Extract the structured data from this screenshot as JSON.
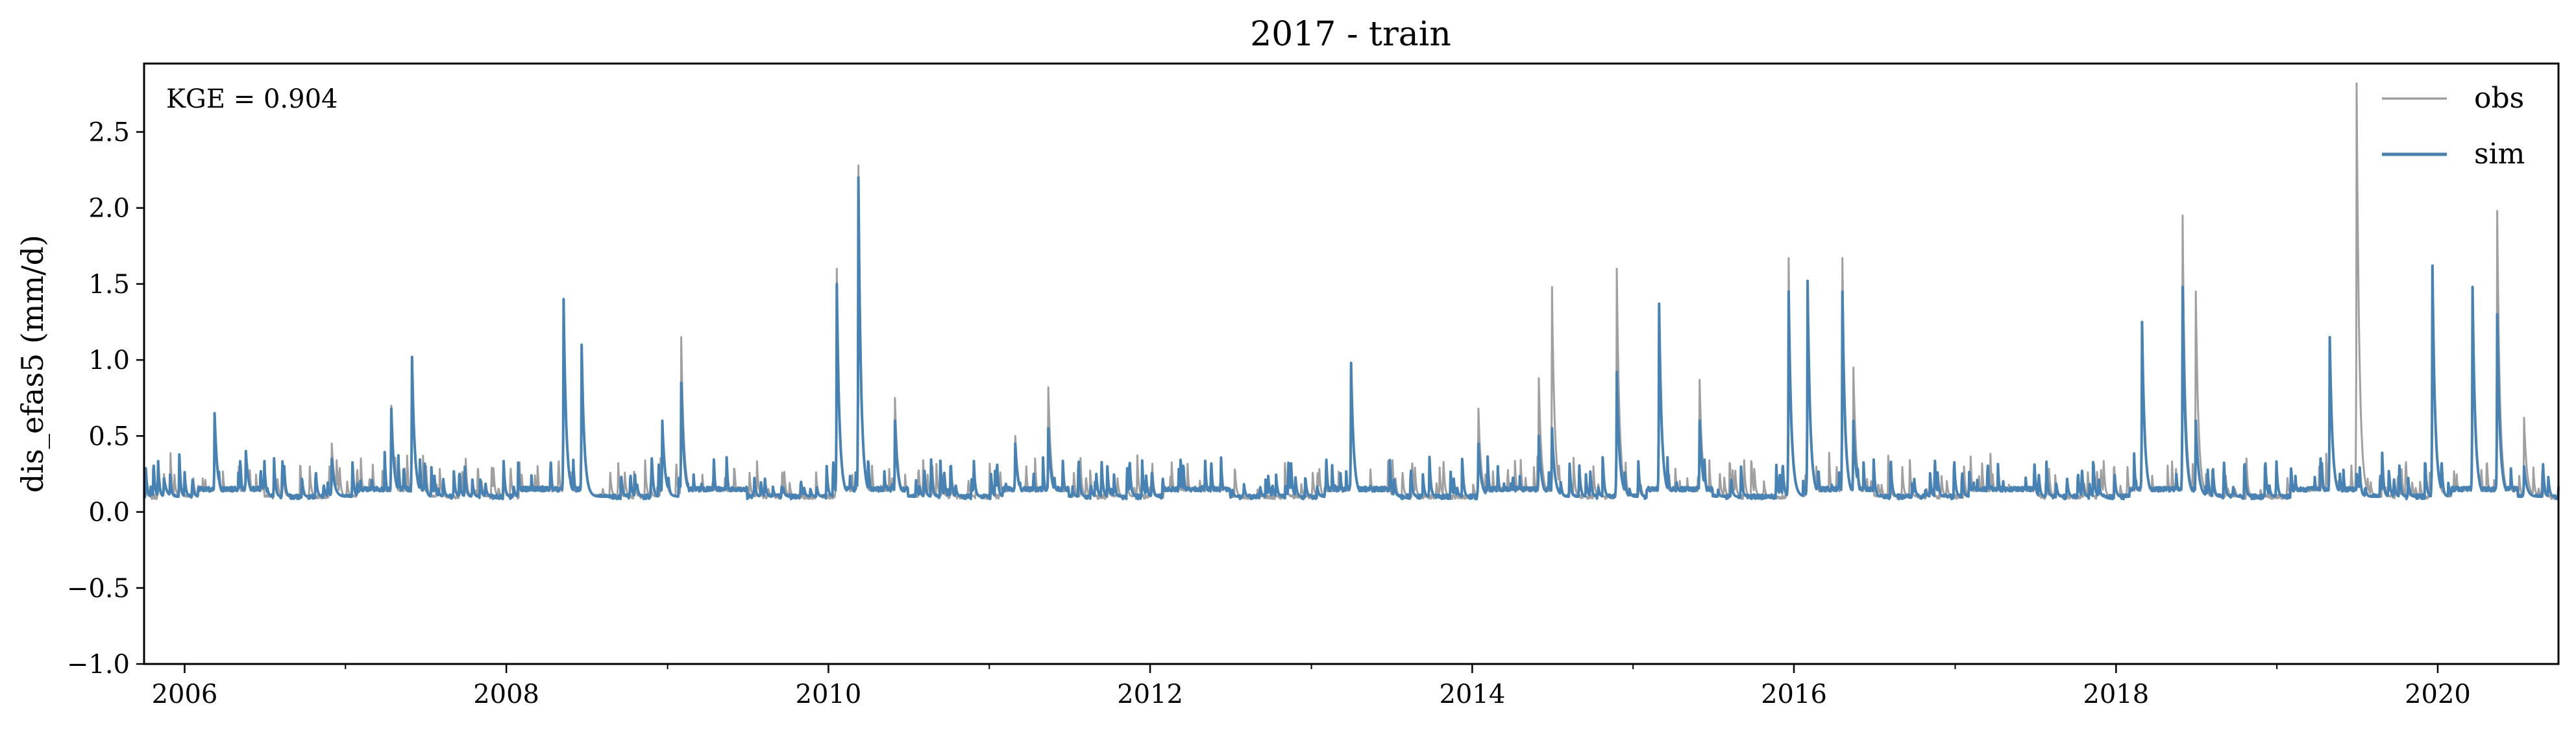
{
  "chart_data": {
    "type": "line",
    "title": "2017 - train",
    "ylabel": "dis_efas5 (mm/d)",
    "xlabel": "",
    "annotation": "KGE = 0.904",
    "legend_position": "top-right",
    "grid": false,
    "xlim": [
      "2005-10-01",
      "2020-10-01"
    ],
    "ylim": [
      -1.0,
      2.95
    ],
    "yticks": [
      {
        "value": -1.0,
        "label": "−1.0"
      },
      {
        "value": -0.5,
        "label": "−0.5"
      },
      {
        "value": 0.0,
        "label": "0.0"
      },
      {
        "value": 0.5,
        "label": "0.5"
      },
      {
        "value": 1.0,
        "label": "1.0"
      },
      {
        "value": 1.5,
        "label": "1.5"
      },
      {
        "value": 2.0,
        "label": "2.0"
      },
      {
        "value": 2.5,
        "label": "2.5"
      }
    ],
    "xticks": [
      {
        "date": "2006-01-01",
        "label": "2006"
      },
      {
        "date": "2008-01-01",
        "label": "2008"
      },
      {
        "date": "2010-01-01",
        "label": "2010"
      },
      {
        "date": "2012-01-01",
        "label": "2012"
      },
      {
        "date": "2014-01-01",
        "label": "2014"
      },
      {
        "date": "2016-01-01",
        "label": "2016"
      },
      {
        "date": "2018-01-01",
        "label": "2018"
      },
      {
        "date": "2020-01-01",
        "label": "2020"
      }
    ],
    "series": [
      {
        "name": "obs",
        "color": "#a0a0a0",
        "baseline": 0.1,
        "peaks": [
          [
            "2005-11-15",
            0.25
          ],
          [
            "2006-03-10",
            0.6
          ],
          [
            "2006-05-20",
            0.4
          ],
          [
            "2006-12-01",
            0.45
          ],
          [
            "2007-04-15",
            0.7
          ],
          [
            "2007-06-01",
            0.95
          ],
          [
            "2008-05-10",
            1.35
          ],
          [
            "2008-06-20",
            1.1
          ],
          [
            "2008-12-20",
            0.6
          ],
          [
            "2009-02-01",
            1.15
          ],
          [
            "2010-01-20",
            1.6
          ],
          [
            "2010-03-10",
            2.28
          ],
          [
            "2010-06-01",
            0.75
          ],
          [
            "2011-03-01",
            0.5
          ],
          [
            "2011-05-15",
            0.82
          ],
          [
            "2013-04-01",
            0.95
          ],
          [
            "2014-01-15",
            0.68
          ],
          [
            "2014-06-01",
            0.88
          ],
          [
            "2014-07-01",
            1.48
          ],
          [
            "2014-11-25",
            1.6
          ],
          [
            "2015-03-01",
            1.35
          ],
          [
            "2015-06-01",
            0.87
          ],
          [
            "2015-12-20",
            1.67
          ],
          [
            "2016-02-01",
            1.5
          ],
          [
            "2016-04-20",
            1.67
          ],
          [
            "2016-05-15",
            0.95
          ],
          [
            "2018-03-01",
            1.2
          ],
          [
            "2018-06-01",
            1.95
          ],
          [
            "2018-07-01",
            1.45
          ],
          [
            "2019-05-01",
            1.15
          ],
          [
            "2019-07-01",
            2.82
          ],
          [
            "2019-12-20",
            1.6
          ],
          [
            "2020-03-20",
            1.48
          ],
          [
            "2020-05-15",
            1.98
          ],
          [
            "2020-07-15",
            0.62
          ]
        ]
      },
      {
        "name": "sim",
        "color": "#4682b4",
        "baseline": 0.1,
        "peaks": [
          [
            "2005-11-15",
            0.22
          ],
          [
            "2006-03-10",
            0.65
          ],
          [
            "2006-05-20",
            0.4
          ],
          [
            "2006-12-01",
            0.35
          ],
          [
            "2007-04-15",
            0.68
          ],
          [
            "2007-06-01",
            1.02
          ],
          [
            "2008-05-10",
            1.4
          ],
          [
            "2008-06-20",
            1.1
          ],
          [
            "2008-12-20",
            0.6
          ],
          [
            "2009-02-01",
            0.85
          ],
          [
            "2010-01-20",
            1.5
          ],
          [
            "2010-03-10",
            2.2
          ],
          [
            "2010-06-01",
            0.6
          ],
          [
            "2011-03-01",
            0.45
          ],
          [
            "2011-05-15",
            0.55
          ],
          [
            "2013-04-01",
            0.98
          ],
          [
            "2014-01-15",
            0.45
          ],
          [
            "2014-06-01",
            0.5
          ],
          [
            "2014-07-01",
            0.55
          ],
          [
            "2014-11-25",
            0.92
          ],
          [
            "2015-03-01",
            1.37
          ],
          [
            "2015-06-01",
            0.6
          ],
          [
            "2015-12-20",
            1.45
          ],
          [
            "2016-02-01",
            1.52
          ],
          [
            "2016-04-20",
            1.45
          ],
          [
            "2016-05-15",
            0.6
          ],
          [
            "2018-03-01",
            1.25
          ],
          [
            "2018-06-01",
            1.48
          ],
          [
            "2018-07-01",
            0.6
          ],
          [
            "2019-05-01",
            1.15
          ],
          [
            "2019-07-01",
            0.25
          ],
          [
            "2019-12-20",
            1.62
          ],
          [
            "2020-03-20",
            1.48
          ],
          [
            "2020-05-15",
            1.3
          ],
          [
            "2020-07-15",
            0.3
          ]
        ]
      }
    ]
  }
}
